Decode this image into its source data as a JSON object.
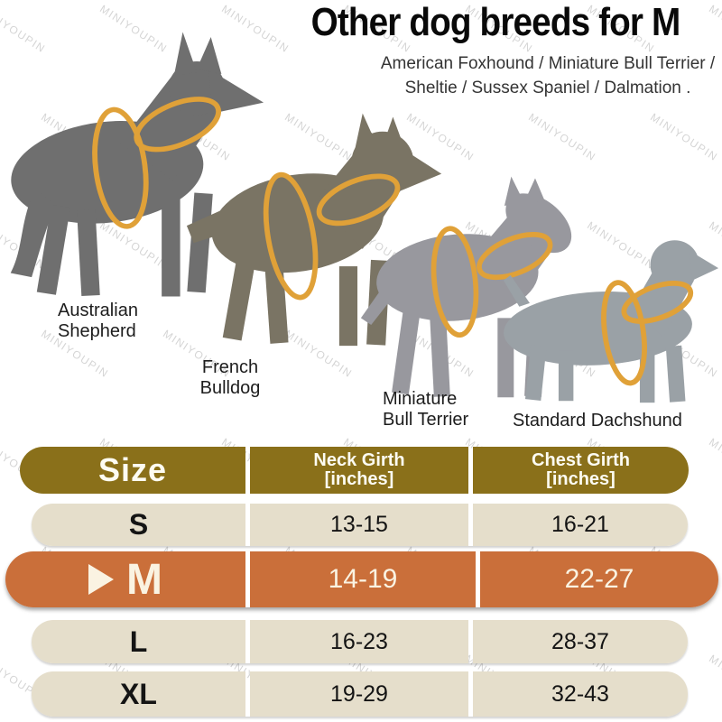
{
  "title": "Other dog breeds for M",
  "subtitle_line1": "American Foxhound / Miniature Bull Terrier /",
  "subtitle_line2": "Sheltie / Sussex Spaniel / Dalmation .",
  "watermark": "MINIYOUPIN",
  "dogs": [
    {
      "name": "Australian Shepherd",
      "label_line1": "Australian",
      "label_line2": "Shepherd"
    },
    {
      "name": "French Bulldog",
      "label_line1": "French",
      "label_line2": "Bulldog"
    },
    {
      "name": "Miniature Bull Terrier",
      "label_line1": "Miniature",
      "label_line2": "Bull Terrier"
    },
    {
      "name": "Standard Dachshund",
      "label_line1": "Standard Dachshund"
    }
  ],
  "size_chart": {
    "header": {
      "size_label": "Size",
      "neck_line1": "Neck Girth",
      "neck_line2": "[inches]",
      "chest_line1": "Chest Girth",
      "chest_line2": "[inches]"
    },
    "rows": [
      {
        "size": "S",
        "neck": "13-15",
        "chest": "16-21",
        "highlighted": false
      },
      {
        "size": "M",
        "neck": "14-19",
        "chest": "22-27",
        "highlighted": true
      },
      {
        "size": "L",
        "neck": "16-23",
        "chest": "28-37",
        "highlighted": false
      },
      {
        "size": "XL",
        "neck": "19-29",
        "chest": "32-43",
        "highlighted": false
      }
    ],
    "highlighted_size": "M"
  },
  "colors": {
    "header_bg": "#8a701a",
    "row_bg": "#e5decb",
    "highlight_bg": "#ca6f3a",
    "harness": "#e0a138",
    "dog_shepherd": "#6f6f6f",
    "dog_bulldog": "#7a7464",
    "dog_bull_terrier": "#98989e",
    "dog_dachshund": "#9aa1a6"
  },
  "chart_data": {
    "type": "table",
    "title": "Other dog breeds for M",
    "columns": [
      "Size",
      "Neck Girth [inches]",
      "Chest Girth [inches]"
    ],
    "rows": [
      [
        "S",
        "13-15",
        "16-21"
      ],
      [
        "M",
        "14-19",
        "22-27"
      ],
      [
        "L",
        "16-23",
        "28-37"
      ],
      [
        "XL",
        "19-29",
        "32-43"
      ]
    ],
    "highlighted_row": "M",
    "annotations": [
      "Australian Shepherd",
      "French Bulldog",
      "Miniature Bull Terrier",
      "Standard Dachshund"
    ]
  }
}
